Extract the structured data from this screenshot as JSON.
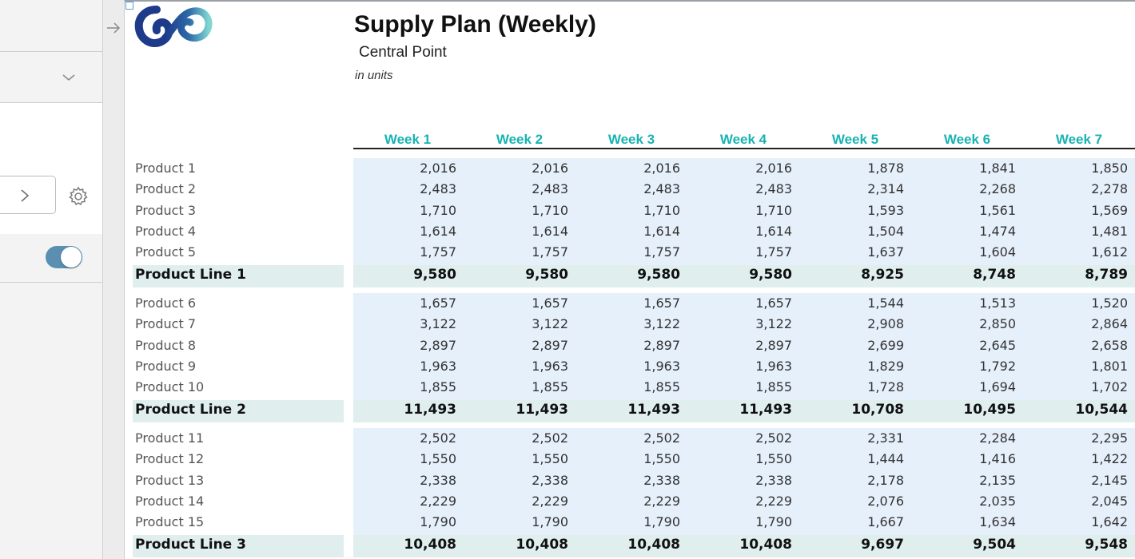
{
  "report": {
    "title": "Supply Plan (Weekly)",
    "subtitle": "Central Point",
    "units": "in units"
  },
  "icons": {
    "left_panel_chevron": "chevron-down-icon",
    "input_arrow": "chevron-right-icon",
    "settings": "gear-icon",
    "collapse": "arrow-right-icon",
    "logo": "brand-logo"
  },
  "toggle": {
    "state": "on"
  },
  "colors": {
    "week_header": "#17b3b0",
    "value_cell_bg": "#e6f0fb",
    "total_row_bg": "#e0eeee",
    "toggle_on": "#5a8fb2"
  },
  "table": {
    "columns": [
      "Week 1",
      "Week 2",
      "Week 3",
      "Week 4",
      "Week 5",
      "Week 6",
      "Week 7"
    ],
    "groups": [
      {
        "rows": [
          {
            "label": "Product 1",
            "values": [
              "2,016",
              "2,016",
              "2,016",
              "2,016",
              "1,878",
              "1,841",
              "1,850"
            ]
          },
          {
            "label": "Product 2",
            "values": [
              "2,483",
              "2,483",
              "2,483",
              "2,483",
              "2,314",
              "2,268",
              "2,278"
            ]
          },
          {
            "label": "Product 3",
            "values": [
              "1,710",
              "1,710",
              "1,710",
              "1,710",
              "1,593",
              "1,561",
              "1,569"
            ]
          },
          {
            "label": "Product 4",
            "values": [
              "1,614",
              "1,614",
              "1,614",
              "1,614",
              "1,504",
              "1,474",
              "1,481"
            ]
          },
          {
            "label": "Product 5",
            "values": [
              "1,757",
              "1,757",
              "1,757",
              "1,757",
              "1,637",
              "1,604",
              "1,612"
            ]
          }
        ],
        "total": {
          "label": "Product Line 1",
          "values": [
            "9,580",
            "9,580",
            "9,580",
            "9,580",
            "8,925",
            "8,748",
            "8,789"
          ]
        }
      },
      {
        "rows": [
          {
            "label": "Product 6",
            "values": [
              "1,657",
              "1,657",
              "1,657",
              "1,657",
              "1,544",
              "1,513",
              "1,520"
            ]
          },
          {
            "label": "Product 7",
            "values": [
              "3,122",
              "3,122",
              "3,122",
              "3,122",
              "2,908",
              "2,850",
              "2,864"
            ]
          },
          {
            "label": "Product 8",
            "values": [
              "2,897",
              "2,897",
              "2,897",
              "2,897",
              "2,699",
              "2,645",
              "2,658"
            ]
          },
          {
            "label": "Product 9",
            "values": [
              "1,963",
              "1,963",
              "1,963",
              "1,963",
              "1,829",
              "1,792",
              "1,801"
            ]
          },
          {
            "label": "Product 10",
            "values": [
              "1,855",
              "1,855",
              "1,855",
              "1,855",
              "1,728",
              "1,694",
              "1,702"
            ]
          }
        ],
        "total": {
          "label": "Product Line 2",
          "values": [
            "11,493",
            "11,493",
            "11,493",
            "11,493",
            "10,708",
            "10,495",
            "10,544"
          ]
        }
      },
      {
        "rows": [
          {
            "label": "Product 11",
            "values": [
              "2,502",
              "2,502",
              "2,502",
              "2,502",
              "2,331",
              "2,284",
              "2,295"
            ]
          },
          {
            "label": "Product 12",
            "values": [
              "1,550",
              "1,550",
              "1,550",
              "1,550",
              "1,444",
              "1,416",
              "1,422"
            ]
          },
          {
            "label": "Product 13",
            "values": [
              "2,338",
              "2,338",
              "2,338",
              "2,338",
              "2,178",
              "2,135",
              "2,145"
            ]
          },
          {
            "label": "Product 14",
            "values": [
              "2,229",
              "2,229",
              "2,229",
              "2,229",
              "2,076",
              "2,035",
              "2,045"
            ]
          },
          {
            "label": "Product 15",
            "values": [
              "1,790",
              "1,790",
              "1,790",
              "1,790",
              "1,667",
              "1,634",
              "1,642"
            ]
          }
        ],
        "total": {
          "label": "Product Line 3",
          "values": [
            "10,408",
            "10,408",
            "10,408",
            "10,408",
            "9,697",
            "9,504",
            "9,548"
          ]
        }
      }
    ]
  }
}
